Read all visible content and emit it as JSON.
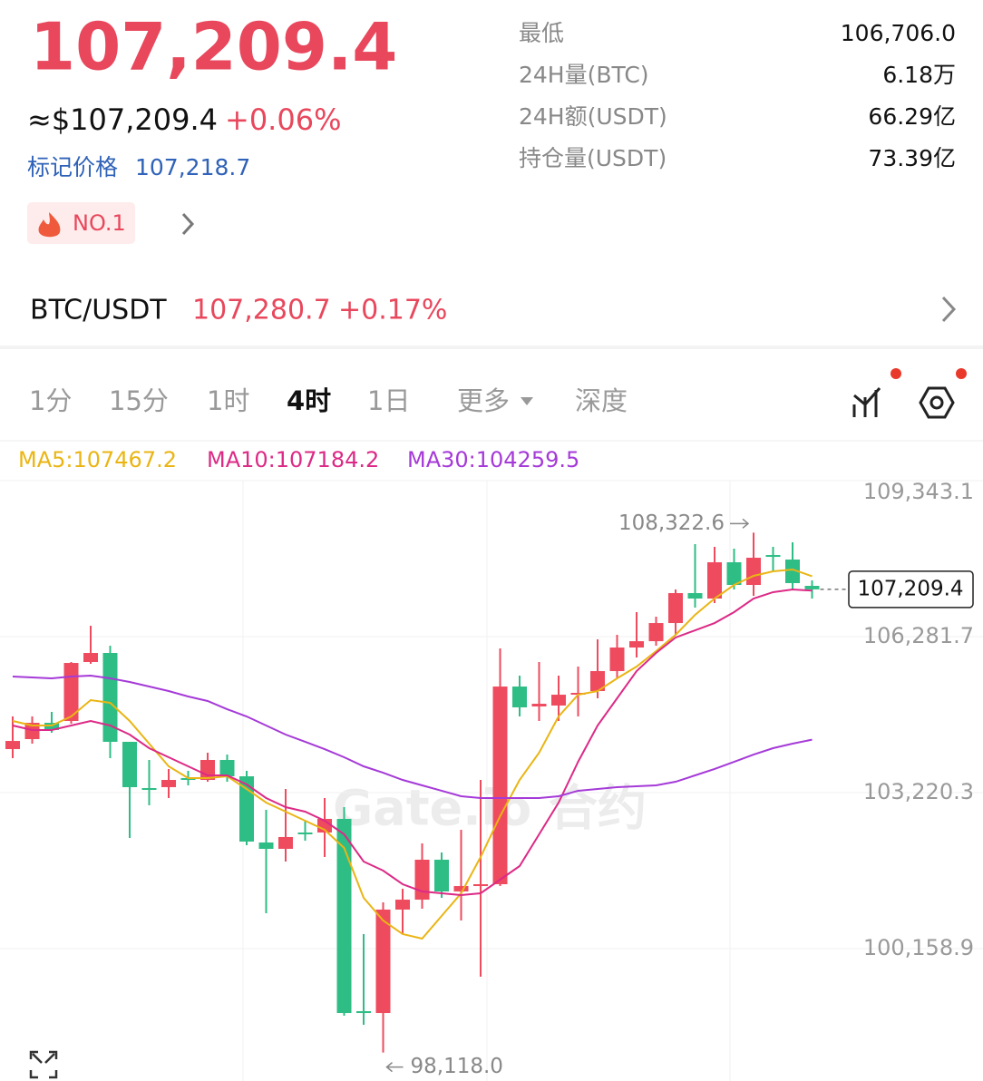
{
  "header": {
    "price": "107,209.4",
    "usd_price": "≈$107,209.4",
    "change": "+0.06%",
    "mark_label": "标记价格",
    "mark_price": "107,218.7",
    "badge": "NO.1"
  },
  "stats": [
    [
      "最低",
      "106,706.0"
    ],
    [
      "24H量(BTC)",
      "6.18万"
    ],
    [
      "24H额(USDT)",
      "66.29亿"
    ],
    [
      "持仓量(USDT)",
      "73.39亿"
    ]
  ],
  "pair": {
    "name": "BTC/USDT",
    "price": "107,280.7",
    "change": "+0.17%"
  },
  "tabs": {
    "items": [
      "1分",
      "15分",
      "1时",
      "4时",
      "1日",
      "更多",
      "深度"
    ],
    "active": 3
  },
  "chart_data": {
    "type": "candlestick",
    "up_color": "#ef4b5f",
    "down_color": "#2ebd85",
    "candles": {
      "open": [
        104074,
        104270,
        104590,
        104626,
        105783,
        105961,
        104217,
        103309,
        103327,
        103505,
        103469,
        103861,
        103540,
        102241,
        102116,
        102437,
        102437,
        102704,
        98930,
        98894,
        100924,
        101119,
        101903,
        101280,
        101386,
        101422,
        105302,
        104911,
        104929,
        105142,
        105213,
        105605,
        106068,
        106192,
        106548,
        107136,
        107029,
        107741,
        107296,
        107883,
        107794,
        107278
      ],
      "high": [
        104715,
        104715,
        104804,
        105783,
        106495,
        106103,
        104217,
        103861,
        103683,
        103647,
        104003,
        103967,
        103647,
        102882,
        103291,
        102668,
        103113,
        102935,
        100443,
        101066,
        101333,
        102223,
        102045,
        102490,
        103469,
        106050,
        105516,
        105783,
        105516,
        105694,
        106228,
        106317,
        106762,
        106673,
        107207,
        108097,
        108044,
        108008,
        108322.6,
        108044,
        108133,
        107385
      ],
      "low": [
        103896,
        104181,
        104395,
        104573,
        105747,
        103896,
        102330,
        102971,
        103113,
        103362,
        103433,
        103433,
        102187,
        100852,
        101867,
        102276,
        101956,
        98841,
        98663,
        98118,
        100443,
        100941,
        101155,
        100710,
        99606,
        101386,
        104715,
        104626,
        104626,
        104715,
        105071,
        105463,
        105872,
        106103,
        106317,
        106851,
        106940,
        107207,
        107082,
        107563,
        107207,
        107029
      ],
      "close": [
        104234,
        104590,
        104448,
        105765,
        105961,
        104217,
        103327,
        103273,
        103469,
        103469,
        103861,
        103540,
        102259,
        102116,
        102348,
        102401,
        102704,
        98894,
        98894,
        100924,
        101119,
        101903,
        101280,
        101386,
        101422,
        105302,
        104893,
        104964,
        105142,
        105178,
        105605,
        106068,
        106192,
        106548,
        107136,
        107029,
        107741,
        107296,
        107830,
        107848,
        107332,
        107209.4
      ]
    },
    "series": [
      {
        "name": "MA5:107467.2",
        "color": "#eab514",
        "values": [
          104626,
          104537,
          104537,
          104715,
          105035,
          104982,
          104626,
          104181,
          103736,
          103505,
          103505,
          103540,
          103291,
          103024,
          102846,
          102668,
          102490,
          102134,
          101155,
          100710,
          100443,
          100354,
          100799,
          101244,
          101956,
          102757,
          103469,
          104003,
          104715,
          105142,
          105213,
          105463,
          105694,
          105997,
          106317,
          106709,
          107029,
          107296,
          107474,
          107563,
          107599,
          107467.2
        ]
      },
      {
        "name": "MA10:107184.2",
        "color": "#dc2a86",
        "values": [
          104537,
          104448,
          104448,
          104537,
          104626,
          104537,
          104359,
          104092,
          103914,
          103736,
          103558,
          103558,
          103380,
          103113,
          102935,
          102846,
          102668,
          102401,
          101867,
          101689,
          101422,
          101280,
          101244,
          101209,
          101244,
          101511,
          101778,
          102401,
          103024,
          103825,
          104537,
          105071,
          105605,
          105961,
          106264,
          106406,
          106548,
          106762,
          107029,
          107154,
          107207,
          107184.2
        ]
      },
      {
        "name": "MA30:104259.5",
        "color": "#a53ad8",
        "values": [
          105498,
          105480,
          105463,
          105498,
          105516,
          105463,
          105391,
          105302,
          105213,
          105107,
          105018,
          104857,
          104715,
          104537,
          104359,
          104217,
          104074,
          103914,
          103736,
          103611,
          103469,
          103362,
          103256,
          103149,
          103113,
          103113,
          103113,
          103113,
          103149,
          103256,
          103291,
          103327,
          103344,
          103362,
          103433,
          103558,
          103683,
          103825,
          103967,
          104092,
          104181,
          104259.5
        ]
      }
    ],
    "ylim": [
      97559.5,
      109343.1
    ],
    "yticks": [
      {
        "value": 109343.1,
        "label": "109,343.1"
      },
      {
        "value": 106281.7,
        "label": "106,281.7"
      },
      {
        "value": 103220.3,
        "label": "103,220.3"
      },
      {
        "value": 100158.9,
        "label": "100,158.9"
      }
    ],
    "grid": true,
    "high_label": "108,322.6",
    "low_label": "98,118.0",
    "last_label": "107,209.4",
    "watermark": "Gate.io 合约"
  }
}
